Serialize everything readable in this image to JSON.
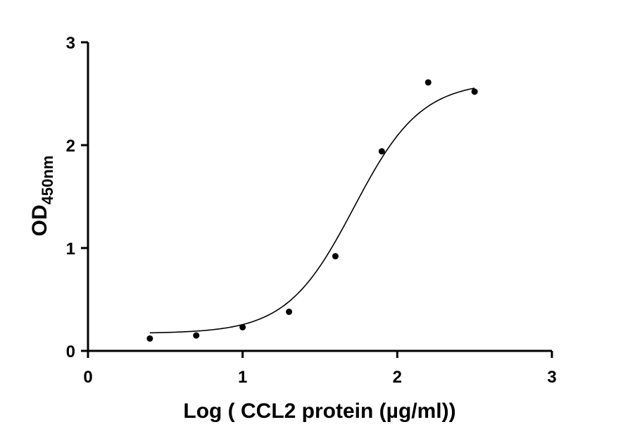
{
  "chart_data": {
    "type": "scatter",
    "xlabel": "Log ( CCL2 protein (µg/ml))",
    "ylabel": {
      "main": "OD",
      "subscript": "450nm"
    },
    "xlim": [
      0,
      3
    ],
    "ylim": [
      0,
      3
    ],
    "xticks": [
      "0",
      "1",
      "2",
      "3"
    ],
    "yticks": [
      "0",
      "1",
      "2",
      "3"
    ],
    "grid": false,
    "legend": "none",
    "point_color": "#000000",
    "series": [
      {
        "x": [
          0.4,
          0.7,
          1.0,
          1.3,
          1.6,
          1.9,
          2.2,
          2.5
        ],
        "y": [
          0.12,
          0.15,
          0.23,
          0.38,
          0.92,
          1.94,
          2.61,
          2.52
        ]
      }
    ],
    "fit": {
      "type": "4PL sigmoid",
      "x_range": [
        0.4,
        2.5
      ],
      "bottom": 0.17,
      "top": 2.62,
      "log_ec50": 1.72,
      "hill_slope": 2.0
    }
  }
}
